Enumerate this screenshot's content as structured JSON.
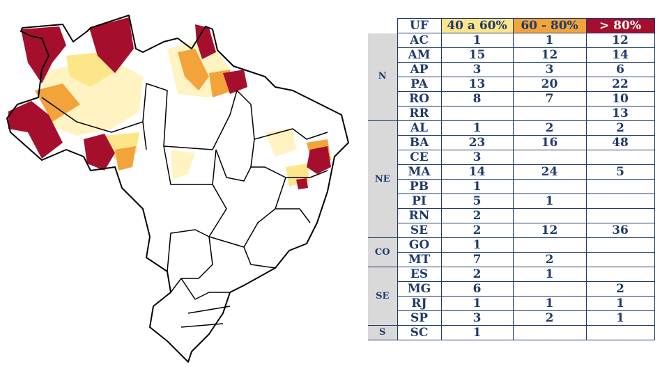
{
  "colors": {
    "cat1": "#fde58a",
    "cat2": "#f2a33a",
    "cat3": "#a50f2d",
    "light": "#fff3c2",
    "border": "#1f3a6b",
    "region_bg": "#d9d9d9"
  },
  "chart_data": {
    "type": "table",
    "columns": [
      "UF",
      "40 a 60%",
      "60 - 80%",
      "> 80%"
    ],
    "groups": [
      {
        "region": "N",
        "rows": [
          {
            "uf": "AC",
            "values": [
              "1",
              "1",
              "12"
            ]
          },
          {
            "uf": "AM",
            "values": [
              "15",
              "12",
              "14"
            ]
          },
          {
            "uf": "AP",
            "values": [
              "3",
              "3",
              "6"
            ]
          },
          {
            "uf": "PA",
            "values": [
              "13",
              "20",
              "22"
            ]
          },
          {
            "uf": "RO",
            "values": [
              "8",
              "7",
              "10"
            ]
          },
          {
            "uf": "RR",
            "values": [
              "",
              "",
              "13"
            ]
          }
        ]
      },
      {
        "region": "NE",
        "rows": [
          {
            "uf": "AL",
            "values": [
              "1",
              "2",
              "2"
            ]
          },
          {
            "uf": "BA",
            "values": [
              "23",
              "16",
              "48"
            ]
          },
          {
            "uf": "CE",
            "values": [
              "3",
              "",
              ""
            ]
          },
          {
            "uf": "MA",
            "values": [
              "14",
              "24",
              "5"
            ]
          },
          {
            "uf": "PB",
            "values": [
              "1",
              "",
              ""
            ]
          },
          {
            "uf": "PI",
            "values": [
              "5",
              "1",
              ""
            ]
          },
          {
            "uf": "RN",
            "values": [
              "2",
              "",
              ""
            ]
          },
          {
            "uf": "SE",
            "values": [
              "2",
              "12",
              "36"
            ]
          }
        ]
      },
      {
        "region": "CO",
        "rows": [
          {
            "uf": "GO",
            "values": [
              "1",
              "",
              ""
            ]
          },
          {
            "uf": "MT",
            "values": [
              "7",
              "2",
              ""
            ]
          }
        ]
      },
      {
        "region": "SE",
        "rows": [
          {
            "uf": "ES",
            "values": [
              "2",
              "1",
              ""
            ]
          },
          {
            "uf": "MG",
            "values": [
              "6",
              "",
              "2"
            ]
          },
          {
            "uf": "RJ",
            "values": [
              "1",
              "1",
              "1"
            ]
          },
          {
            "uf": "SP",
            "values": [
              "3",
              "2",
              "1"
            ]
          }
        ]
      },
      {
        "region": "S",
        "rows": [
          {
            "uf": "SC",
            "values": [
              "1",
              "",
              ""
            ]
          }
        ]
      }
    ]
  }
}
